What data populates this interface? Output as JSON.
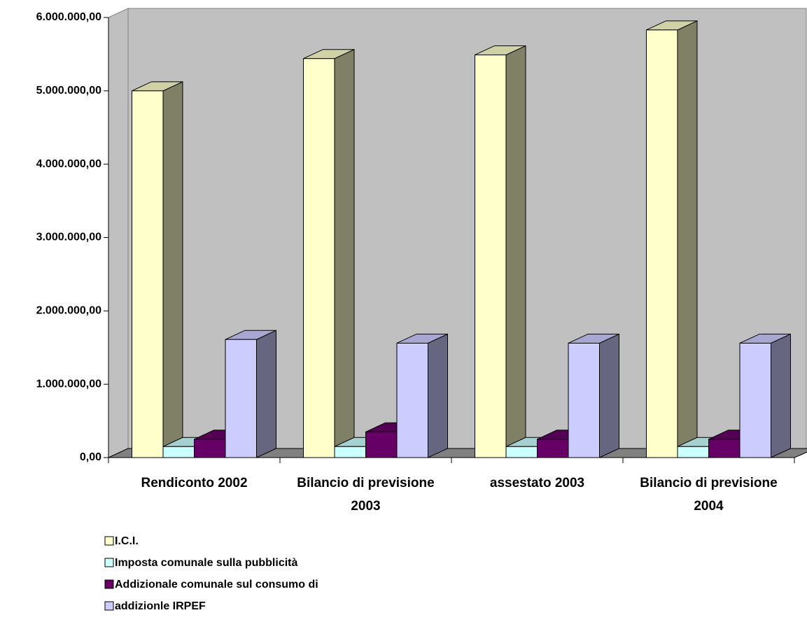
{
  "chart_data": {
    "type": "bar3d",
    "categories": [
      "Rendiconto 2002",
      "Bilancio di previsione 2003",
      "assestato 2003",
      "Bilancio di previsione 2004"
    ],
    "series": [
      {
        "name": "I.C.I.",
        "color": "#FFFFCC",
        "values": [
          5000000,
          5440000,
          5490000,
          5830000
        ]
      },
      {
        "name": "Imposta comunale sulla pubblicità",
        "color": "#CCFFFF",
        "values": [
          150000,
          150000,
          150000,
          150000
        ]
      },
      {
        "name": "Addizionale comunale sul consumo di",
        "color": "#660066",
        "values": [
          250000,
          350000,
          250000,
          250000
        ]
      },
      {
        "name": "addizionle IRPEF",
        "color": "#CCCCFF",
        "values": [
          1610000,
          1560000,
          1560000,
          1560000
        ]
      }
    ],
    "ylim": [
      0,
      6000000
    ],
    "yticks": [
      {
        "value": 0,
        "label": "0,00"
      },
      {
        "value": 1000000,
        "label": "1.000.000,00"
      },
      {
        "value": 2000000,
        "label": "2.000.000,00"
      },
      {
        "value": 3000000,
        "label": "3.000.000,00"
      },
      {
        "value": 4000000,
        "label": "4.000.000,00"
      },
      {
        "value": 5000000,
        "label": "5.000.000,00"
      },
      {
        "value": 6000000,
        "label": "6.000.000,00"
      }
    ],
    "legend": "bottom-left"
  }
}
